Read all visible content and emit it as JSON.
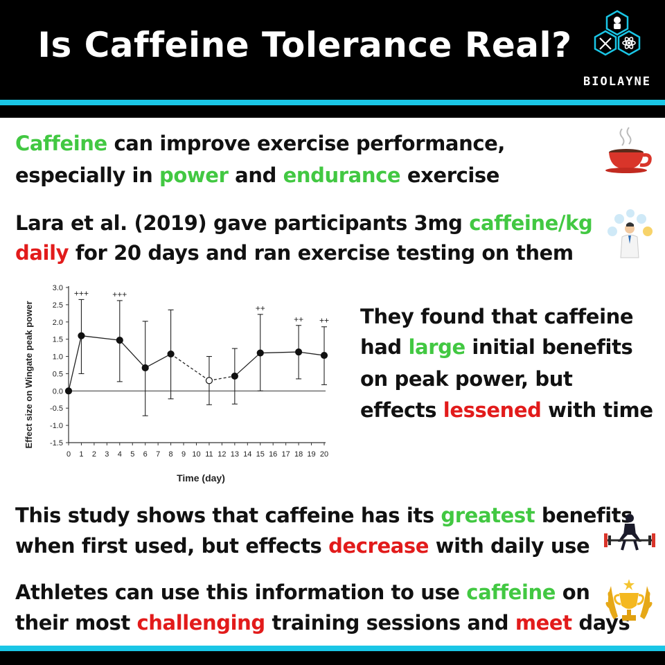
{
  "header": {
    "title": "Is Caffeine Tolerance Real?",
    "brand": "BIOLAYNE"
  },
  "blocks": [
    {
      "lines": [
        [
          {
            "text": "Caffeine",
            "color": "green"
          },
          {
            "text": " can improve exercise performance,",
            "color": "black"
          }
        ],
        [
          {
            "text": "especially in ",
            "color": "black"
          },
          {
            "text": "power",
            "color": "green"
          },
          {
            "text": " and ",
            "color": "black"
          },
          {
            "text": "endurance",
            "color": "green"
          },
          {
            "text": " exercise",
            "color": "black"
          }
        ]
      ]
    },
    {
      "lines": [
        [
          {
            "text": "Lara et al. (2019) gave participants 3mg ",
            "color": "black"
          },
          {
            "text": "caffeine/kg",
            "color": "green"
          }
        ],
        [
          {
            "text": "daily",
            "color": "red"
          },
          {
            "text": " for 20 days and ran exercise testing on them",
            "color": "black"
          }
        ]
      ]
    },
    {
      "lines": [
        [
          {
            "text": "They found that caffeine",
            "color": "black"
          }
        ],
        [
          {
            "text": "had ",
            "color": "black"
          },
          {
            "text": "large",
            "color": "green"
          },
          {
            "text": " initial benefits",
            "color": "black"
          }
        ],
        [
          {
            "text": "on peak power, but",
            "color": "black"
          }
        ],
        [
          {
            "text": "effects ",
            "color": "black"
          },
          {
            "text": "lessened",
            "color": "red"
          },
          {
            "text": " with time",
            "color": "black"
          }
        ]
      ]
    },
    {
      "lines": [
        [
          {
            "text": "This study shows that caffeine has its ",
            "color": "black"
          },
          {
            "text": "greatest",
            "color": "green"
          },
          {
            "text": " benefits",
            "color": "black"
          }
        ],
        [
          {
            "text": "when first used, but effects ",
            "color": "black"
          },
          {
            "text": "decrease",
            "color": "red"
          },
          {
            "text": " with daily use",
            "color": "black"
          }
        ]
      ]
    },
    {
      "lines": [
        [
          {
            "text": "Athletes can use this information to use ",
            "color": "black"
          },
          {
            "text": "caffeine",
            "color": "green"
          },
          {
            "text": " on",
            "color": "black"
          }
        ],
        [
          {
            "text": "their most ",
            "color": "black"
          },
          {
            "text": "challenging",
            "color": "red"
          },
          {
            "text": " training sessions and ",
            "color": "black"
          },
          {
            "text": "meet",
            "color": "red"
          },
          {
            "text": " days",
            "color": "black"
          }
        ]
      ]
    }
  ],
  "icons": [
    "coffee-cup-icon",
    "scientist-icon",
    "weightlifter-icon",
    "trophy-icon"
  ],
  "colors": {
    "green": "#42c842",
    "red": "#e21b1b",
    "black": "#111111",
    "accent": "#1ac6e6"
  },
  "chart_data": {
    "type": "line",
    "xlabel": "Time (day)",
    "ylabel": "Effect size on Wingate peak power",
    "xlim": [
      0,
      20
    ],
    "ylim": [
      -1.5,
      3.0
    ],
    "xticks": [
      0,
      1,
      2,
      3,
      4,
      5,
      6,
      7,
      8,
      9,
      10,
      11,
      12,
      13,
      14,
      15,
      16,
      17,
      18,
      19,
      20
    ],
    "yticks": [
      3.0,
      2.5,
      2.0,
      1.5,
      1.0,
      0.5,
      0.0,
      -0.5,
      -1.0,
      -1.5
    ],
    "points": [
      {
        "x": 0,
        "y": 0.0,
        "lo": 0.0,
        "hi": 0.0,
        "marker": "filled",
        "label": ""
      },
      {
        "x": 1,
        "y": 1.6,
        "lo": 0.5,
        "hi": 2.65,
        "marker": "filled",
        "label": "+++"
      },
      {
        "x": 4,
        "y": 1.47,
        "lo": 0.27,
        "hi": 2.62,
        "marker": "filled",
        "label": "+++"
      },
      {
        "x": 6,
        "y": 0.67,
        "lo": -0.72,
        "hi": 2.02,
        "marker": "filled",
        "label": ""
      },
      {
        "x": 8,
        "y": 1.07,
        "lo": -0.23,
        "hi": 2.35,
        "marker": "filled",
        "label": ""
      },
      {
        "x": 11,
        "y": 0.3,
        "lo": -0.4,
        "hi": 1.0,
        "marker": "open",
        "label": ""
      },
      {
        "x": 13,
        "y": 0.43,
        "lo": -0.38,
        "hi": 1.23,
        "marker": "filled",
        "label": ""
      },
      {
        "x": 15,
        "y": 1.1,
        "lo": 0.0,
        "hi": 2.22,
        "marker": "filled",
        "label": "++"
      },
      {
        "x": 18,
        "y": 1.13,
        "lo": 0.35,
        "hi": 1.9,
        "marker": "filled",
        "label": "++"
      },
      {
        "x": 20,
        "y": 1.03,
        "lo": 0.18,
        "hi": 1.86,
        "marker": "filled",
        "label": "++"
      }
    ],
    "dashed_segments": [
      [
        8,
        11
      ],
      [
        11,
        13
      ]
    ],
    "grid": false
  }
}
